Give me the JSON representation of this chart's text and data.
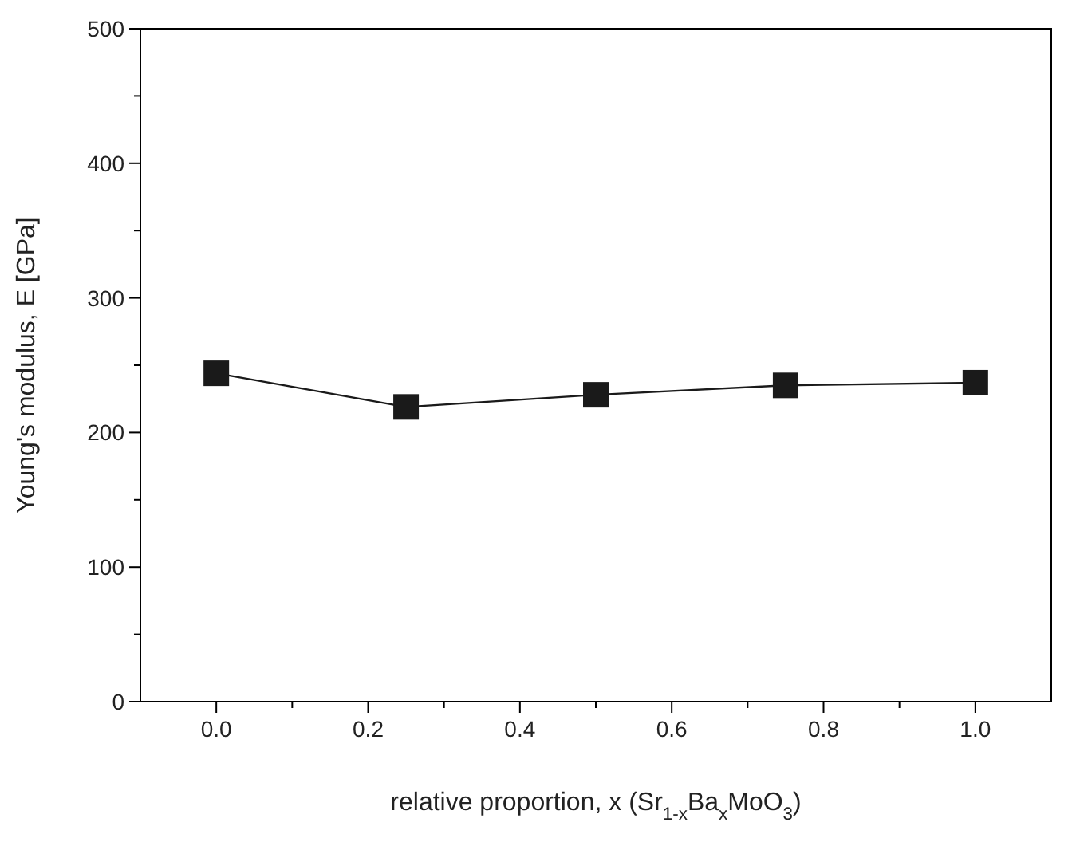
{
  "chart_data": {
    "type": "line",
    "xlabel": "relative proportion, x (Sr$_{1-x}$Ba$_{x}$MoO$_{3}$)",
    "ylabel": "Young's modulus, E [GPa]",
    "x": [
      0,
      0.25,
      0.5,
      0.75,
      1.0
    ],
    "series": [
      {
        "color": "#1a1a1a",
        "values": [
          244,
          219,
          228,
          235,
          237
        ]
      }
    ],
    "marker": "square",
    "line_style": "solid",
    "xlim": [
      -0.1,
      1.1
    ],
    "xticks": [
      {
        "value": 0,
        "label": "0.0"
      },
      {
        "value": 0.1,
        "label": null
      },
      {
        "value": 0.2,
        "label": "0.2"
      },
      {
        "value": 0.3,
        "label": null
      },
      {
        "value": 0.4,
        "label": "0.4"
      },
      {
        "value": 0.5,
        "label": null
      },
      {
        "value": 0.6,
        "label": "0.6"
      },
      {
        "value": 0.7,
        "label": null
      },
      {
        "value": 0.8,
        "label": "0.8"
      },
      {
        "value": 0.9,
        "label": null
      },
      {
        "value": 1.0,
        "label": "1.0"
      }
    ],
    "ylim": [
      0,
      500
    ],
    "yticks": [
      0,
      {
        "value": 50,
        "label": null
      },
      100,
      {
        "value": 150,
        "label": null
      },
      200,
      {
        "value": 250,
        "label": null
      },
      300,
      {
        "value": 350,
        "label": null
      },
      400,
      {
        "value": 450,
        "label": null
      },
      500
    ],
    "grid": false,
    "legend": false
  }
}
